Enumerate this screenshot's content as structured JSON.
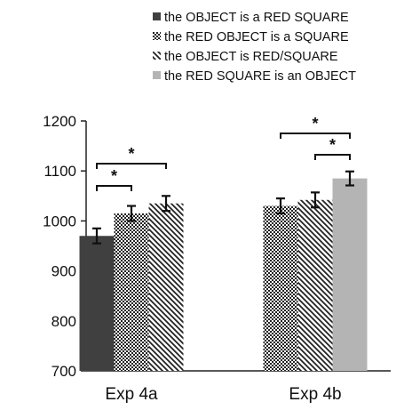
{
  "chart_data": {
    "type": "bar",
    "title": "",
    "xlabel": "",
    "ylabel": "",
    "categories": [
      "Exp 4a",
      "Exp 4b"
    ],
    "ylim": [
      700,
      1200
    ],
    "yticks": [
      "700",
      "800",
      "900",
      "1000",
      "1100",
      "1200"
    ],
    "grid": false,
    "legend_position": "top",
    "series": [
      {
        "name": "the OBJECT is a RED SQUARE",
        "pattern": "solid-dark",
        "color": "#404040",
        "values": [
          970,
          null
        ],
        "errors": [
          15,
          null
        ]
      },
      {
        "name": "the RED OBJECT is a SQUARE",
        "pattern": "checker",
        "color": "#222222",
        "values": [
          1015,
          1030
        ],
        "errors": [
          15,
          15
        ]
      },
      {
        "name": "the OBJECT is RED/SQUARE",
        "pattern": "diagonal-stripes",
        "color": "#222222",
        "values": [
          1035,
          1042
        ],
        "errors": [
          15,
          15
        ]
      },
      {
        "name": "the RED SQUARE is an OBJECT",
        "pattern": "solid-light",
        "color": "#b4b4b4",
        "values": [
          null,
          1085
        ],
        "errors": [
          null,
          14
        ]
      }
    ],
    "annotations": [
      {
        "group": 0,
        "from_series": 0,
        "to_series": 1,
        "level": 1,
        "label": "*"
      },
      {
        "group": 0,
        "from_series": 0,
        "to_series": 2,
        "level": 2,
        "label": "*"
      },
      {
        "group": 1,
        "from_series": 2,
        "to_series": 3,
        "level": 1,
        "label": "*"
      },
      {
        "group": 1,
        "from_series": 1,
        "to_series": 3,
        "level": 2,
        "label": "*"
      }
    ]
  }
}
